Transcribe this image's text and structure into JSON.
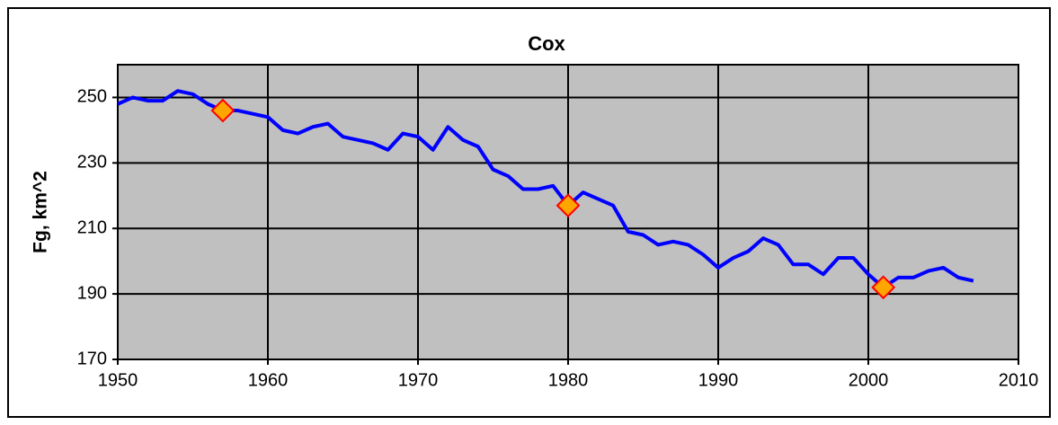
{
  "chart_data": {
    "type": "line",
    "title": "Cox",
    "y_label": "Fg, km^2",
    "xlim": [
      1950,
      2010
    ],
    "xticks": [
      1950,
      1960,
      1970,
      1980,
      1990,
      2000,
      2010
    ],
    "ylim": [
      170,
      260
    ],
    "yticks": [
      170,
      190,
      210,
      230,
      250
    ],
    "grid": true,
    "background": "#c0c0c0",
    "series": [
      {
        "color": "#0000ff",
        "x": [
          1950,
          1951,
          1952,
          1953,
          1954,
          1955,
          1956,
          1957,
          1958,
          1959,
          1960,
          1961,
          1962,
          1963,
          1964,
          1965,
          1966,
          1967,
          1968,
          1969,
          1970,
          1971,
          1972,
          1973,
          1974,
          1975,
          1976,
          1977,
          1978,
          1979,
          1980,
          1981,
          1982,
          1983,
          1984,
          1985,
          1986,
          1987,
          1988,
          1989,
          1990,
          1991,
          1992,
          1993,
          1994,
          1995,
          1996,
          1997,
          1998,
          1999,
          2000,
          2001,
          2002,
          2003,
          2004,
          2005,
          2006,
          2007
        ],
        "values": [
          248,
          250,
          249,
          249,
          252,
          251,
          248,
          246,
          246,
          245,
          244,
          240,
          239,
          241,
          242,
          238,
          237,
          236,
          234,
          239,
          238,
          234,
          241,
          237,
          235,
          228,
          226,
          222,
          222,
          223,
          217,
          221,
          219,
          217,
          209,
          208,
          205,
          206,
          205,
          202,
          198,
          201,
          203,
          207,
          205,
          199,
          199,
          196,
          201,
          201,
          196,
          192,
          195,
          195,
          197,
          198,
          195,
          194
        ]
      },
      {
        "color": "#ffa500",
        "edge_color": "#ff0000",
        "marker": "diamond",
        "x": [
          1957,
          1980,
          2001
        ],
        "values": [
          246,
          217,
          192
        ]
      }
    ]
  }
}
